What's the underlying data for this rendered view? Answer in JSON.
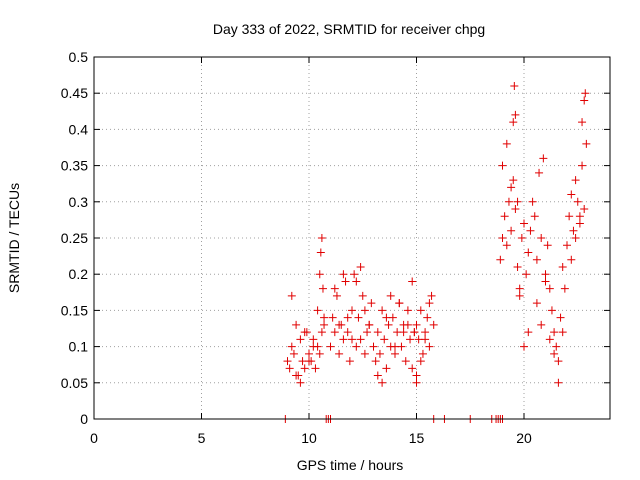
{
  "chart_data": {
    "type": "scatter",
    "title": "Day 333 of 2022, SRMTID for receiver chpg",
    "xlabel": "GPS time / hours",
    "ylabel": "SRMTID / TECUs",
    "xlim": [
      0,
      24
    ],
    "ylim": [
      0,
      0.5
    ],
    "xticks": [
      0,
      5,
      10,
      15,
      20
    ],
    "yticks": [
      0,
      0.05,
      0.1,
      0.15,
      0.2,
      0.25,
      0.3,
      0.35,
      0.4,
      0.45,
      0.5
    ],
    "xtick_labels": [
      "0",
      "5",
      "10",
      "15",
      "20"
    ],
    "ytick_labels": [
      "0",
      "0.05",
      "0.1",
      "0.15",
      "0.2",
      "0.25",
      "0.3",
      "0.35",
      "0.4",
      "0.45",
      "0.5"
    ],
    "grid": true,
    "marker": "+",
    "color": "#e00000",
    "series": [
      {
        "name": "SRMTID",
        "x": [
          9.0,
          9.1,
          9.2,
          9.3,
          9.4,
          9.5,
          9.6,
          9.7,
          9.8,
          9.9,
          10.0,
          10.1,
          10.2,
          10.3,
          10.4,
          10.5,
          10.6,
          10.7,
          9.2,
          9.4,
          9.6,
          9.8,
          10.0,
          10.2,
          10.4,
          10.5,
          10.55,
          10.6,
          10.65,
          10.7,
          11.0,
          11.1,
          11.2,
          11.3,
          11.4,
          11.5,
          11.6,
          11.7,
          11.8,
          11.9,
          12.0,
          12.1,
          12.2,
          12.3,
          12.4,
          12.5,
          12.6,
          12.7,
          12.8,
          12.9,
          11.2,
          11.4,
          11.6,
          11.8,
          12.0,
          12.2,
          12.4,
          12.6,
          12.8,
          13.0,
          13.1,
          13.2,
          13.3,
          13.4,
          13.5,
          13.6,
          13.7,
          13.8,
          13.9,
          14.0,
          14.1,
          14.2,
          14.3,
          14.4,
          14.5,
          14.6,
          14.7,
          14.8,
          14.9,
          13.2,
          13.4,
          13.6,
          13.8,
          14.0,
          14.2,
          14.4,
          14.6,
          14.8,
          15.0,
          15.1,
          15.2,
          15.3,
          15.4,
          15.5,
          15.6,
          15.7,
          15.8,
          15.0,
          15.2,
          15.4,
          15.6,
          14.9,
          15.0,
          18.9,
          19.0,
          19.1,
          19.2,
          19.3,
          19.4,
          19.5,
          19.6,
          19.7,
          19.8,
          19.9,
          20.0,
          20.1,
          20.2,
          20.3,
          20.4,
          19.0,
          19.2,
          19.4,
          19.5,
          19.55,
          19.6,
          19.7,
          19.8,
          20.0,
          20.2,
          20.5,
          20.6,
          20.7,
          20.8,
          20.9,
          21.0,
          21.1,
          21.2,
          21.3,
          21.4,
          21.5,
          21.6,
          21.7,
          21.8,
          21.9,
          20.6,
          20.8,
          21.0,
          21.2,
          21.4,
          21.6,
          21.8,
          22.0,
          22.1,
          22.2,
          22.3,
          22.4,
          22.5,
          22.6,
          22.7,
          22.8,
          22.9,
          22.2,
          22.4,
          22.6,
          22.7,
          22.8,
          22.85,
          8.9,
          10.8,
          10.9,
          11.0,
          15.8,
          16.3,
          17.5,
          18.5,
          18.7,
          18.8,
          18.9,
          19.0
        ],
        "y": [
          0.08,
          0.07,
          0.1,
          0.09,
          0.13,
          0.06,
          0.11,
          0.08,
          0.07,
          0.12,
          0.09,
          0.08,
          0.11,
          0.07,
          0.1,
          0.09,
          0.12,
          0.14,
          0.17,
          0.06,
          0.05,
          0.12,
          0.08,
          0.1,
          0.15,
          0.2,
          0.23,
          0.25,
          0.18,
          0.13,
          0.1,
          0.14,
          0.12,
          0.17,
          0.09,
          0.13,
          0.11,
          0.19,
          0.12,
          0.08,
          0.15,
          0.2,
          0.1,
          0.14,
          0.11,
          0.17,
          0.09,
          0.12,
          0.13,
          0.16,
          0.18,
          0.13,
          0.2,
          0.14,
          0.11,
          0.19,
          0.21,
          0.15,
          0.13,
          0.1,
          0.08,
          0.12,
          0.09,
          0.15,
          0.11,
          0.07,
          0.13,
          0.1,
          0.14,
          0.09,
          0.12,
          0.16,
          0.1,
          0.13,
          0.08,
          0.15,
          0.11,
          0.19,
          0.12,
          0.06,
          0.05,
          0.14,
          0.17,
          0.1,
          0.16,
          0.12,
          0.13,
          0.07,
          0.13,
          0.11,
          0.15,
          0.09,
          0.12,
          0.14,
          0.1,
          0.17,
          0.13,
          0.05,
          0.08,
          0.11,
          0.16,
          0.12,
          0.06,
          0.22,
          0.25,
          0.28,
          0.24,
          0.3,
          0.26,
          0.33,
          0.29,
          0.21,
          0.18,
          0.25,
          0.27,
          0.2,
          0.23,
          0.26,
          0.3,
          0.35,
          0.38,
          0.32,
          0.41,
          0.46,
          0.42,
          0.3,
          0.17,
          0.1,
          0.12,
          0.28,
          0.22,
          0.34,
          0.25,
          0.36,
          0.2,
          0.24,
          0.18,
          0.15,
          0.12,
          0.1,
          0.08,
          0.14,
          0.21,
          0.18,
          0.16,
          0.13,
          0.19,
          0.11,
          0.09,
          0.05,
          0.12,
          0.24,
          0.28,
          0.31,
          0.26,
          0.33,
          0.3,
          0.27,
          0.35,
          0.29,
          0.38,
          0.22,
          0.25,
          0.28,
          0.41,
          0.44,
          0.45,
          0.0,
          0.0,
          0.0,
          0.0,
          0.0,
          0.0,
          0.0,
          0.0,
          0.0,
          0.0,
          0.0,
          0.0
        ]
      }
    ]
  }
}
